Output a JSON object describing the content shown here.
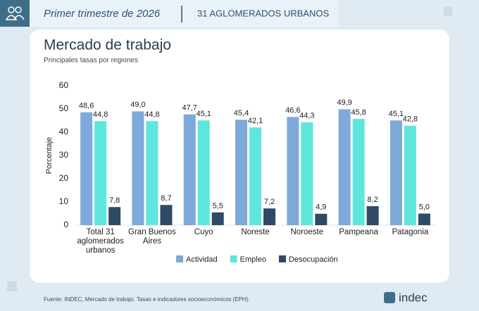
{
  "header": {
    "period": "Primer trimestre de 2026",
    "scope": "31 AGLOMERADOS URBANOS"
  },
  "chart_data": {
    "type": "bar",
    "title": "Mercado de trabajo",
    "subtitle": "Principales tasas por regiones",
    "y_label": "Porcentaje",
    "categories": [
      "Total 31 aglomerados urbanos",
      "Gran Buenos Aires",
      "Cuyo",
      "Noreste",
      "Noroeste",
      "Pampeana",
      "Patagonia"
    ],
    "series": [
      {
        "name": "Actividad",
        "color": "#7ea9d9",
        "values": [
          48.6,
          49.0,
          47.7,
          45.4,
          46.6,
          49.9,
          45.1
        ],
        "value_labels": [
          "48,6",
          "49,0",
          "47,7",
          "45,4",
          "46,6",
          "49,9",
          "45,1"
        ]
      },
      {
        "name": "Empleo",
        "color": "#5fe6dc",
        "values": [
          44.8,
          44.8,
          45.1,
          42.1,
          44.3,
          45.8,
          42.8
        ],
        "value_labels": [
          "44,8",
          "44,8",
          "45,1",
          "42,1",
          "44,3",
          "45,8",
          "42,8"
        ]
      },
      {
        "name": "Desocupación",
        "color": "#2f4a66",
        "values": [
          7.8,
          8.7,
          5.5,
          7.2,
          4.9,
          8.2,
          5.0
        ],
        "value_labels": [
          "7,8",
          "8,7",
          "5,5",
          "7,2",
          "4,9",
          "8,2",
          "5,0"
        ]
      }
    ],
    "ylim": [
      0,
      60
    ],
    "yticks": [
      0,
      10,
      20,
      30,
      40,
      50,
      60
    ],
    "legend": "bottom"
  },
  "footer": {
    "source": "Fuente: INDEC, Mercado de trabajo. Tasas e indicadores socioeconómicos (EPH).",
    "logo": "indec"
  }
}
